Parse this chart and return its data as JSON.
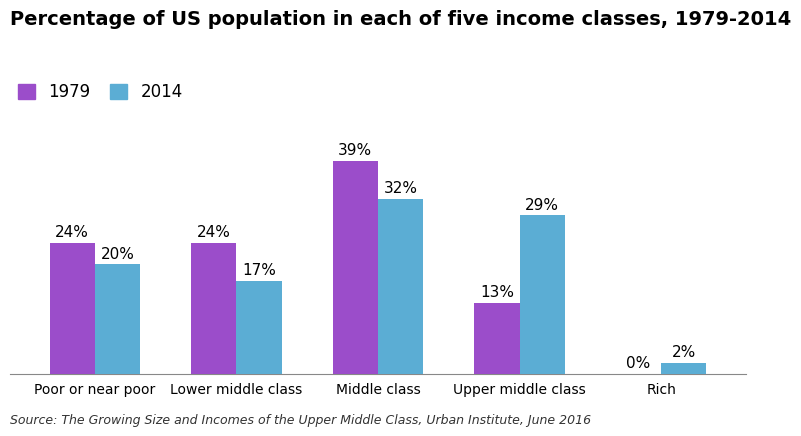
{
  "title": "Percentage of US population in each of five income classes, 1979-2014",
  "categories": [
    "Poor or near poor",
    "Lower middle class",
    "Middle class",
    "Upper middle class",
    "Rich"
  ],
  "values_1979": [
    24,
    24,
    39,
    13,
    0
  ],
  "values_2014": [
    20,
    17,
    32,
    29,
    2
  ],
  "color_1979": "#9b4dca",
  "color_2014": "#5badd4",
  "legend_labels": [
    "1979",
    "2014"
  ],
  "source_text": "Source: The Growing Size and Incomes of the Upper Middle Class, Urban Institute, June 2016",
  "ylim": [
    0,
    46
  ],
  "bar_width": 0.32,
  "title_fontsize": 14,
  "label_fontsize": 11,
  "tick_fontsize": 10,
  "source_fontsize": 9,
  "background_color": "#ffffff"
}
